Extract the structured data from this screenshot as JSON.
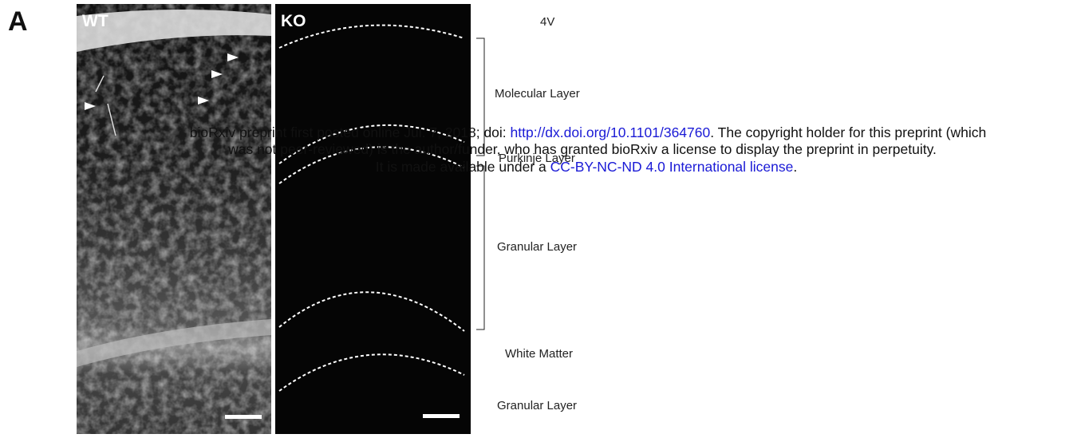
{
  "figure": {
    "panel_label": "A",
    "images": [
      {
        "label": "WT"
      },
      {
        "label": "KO"
      }
    ],
    "layer_labels": [
      "4V",
      "Molecular Layer",
      "Purkinje Layer",
      "Granular Layer",
      "White Matter",
      "Granular Layer"
    ]
  },
  "watermark": {
    "lines": [
      [
        "bioRxiv preprint first posted online Jul. 7, 2018; doi: ",
        "http://dx.doi.org/10.1101/364760",
        ". The copyright holder for this preprint (which"
      ],
      [
        "was not peer-reviewed) is the author/funder, who has granted bioRxiv a license to display the preprint in perpetuity."
      ],
      [
        "It is made available under a ",
        "CC-BY-NC-ND 4.0 International license",
        "."
      ]
    ]
  }
}
